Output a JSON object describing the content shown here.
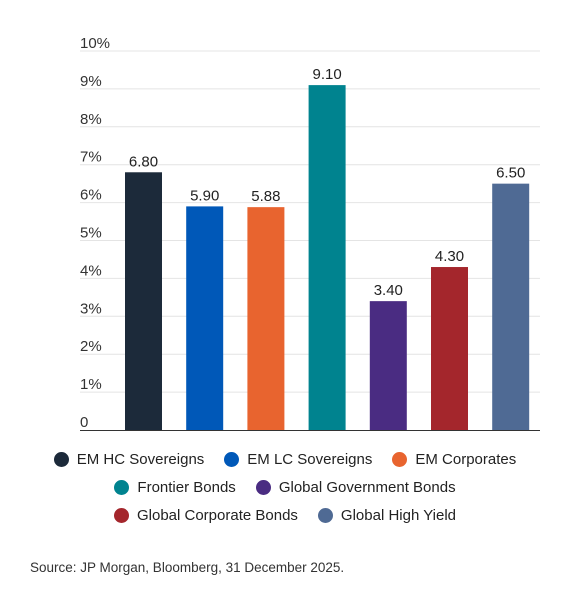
{
  "chart_data": {
    "type": "bar",
    "title": "",
    "xlabel": "",
    "ylabel": "",
    "ylim": [
      0,
      10
    ],
    "yticks": [
      "0",
      "1%",
      "2%",
      "3%",
      "4%",
      "5%",
      "6%",
      "7%",
      "8%",
      "9%",
      "10%"
    ],
    "grid": true,
    "legend_position": "bottom",
    "categories": [
      "EM HC Sovereigns",
      "EM LC Sovereigns",
      "EM Corporates",
      "Frontier Bonds",
      "Global Government Bonds",
      "Global Corporate Bonds",
      "Global High Yield"
    ],
    "values": [
      6.8,
      5.9,
      5.88,
      9.1,
      3.4,
      4.3,
      6.5
    ],
    "value_labels": [
      "6.80",
      "5.90",
      "5.88",
      "9.10",
      "3.40",
      "4.30",
      "6.50"
    ],
    "colors": [
      "#1c2a3a",
      "#0058b8",
      "#e8642f",
      "#00838f",
      "#4a2c82",
      "#a4262c",
      "#4f6a94"
    ]
  },
  "legend_rows": [
    [
      0,
      1,
      2
    ],
    [
      3,
      4
    ],
    [
      5,
      6
    ]
  ],
  "source": "Source: JP Morgan, Bloomberg, 31 December 2025."
}
